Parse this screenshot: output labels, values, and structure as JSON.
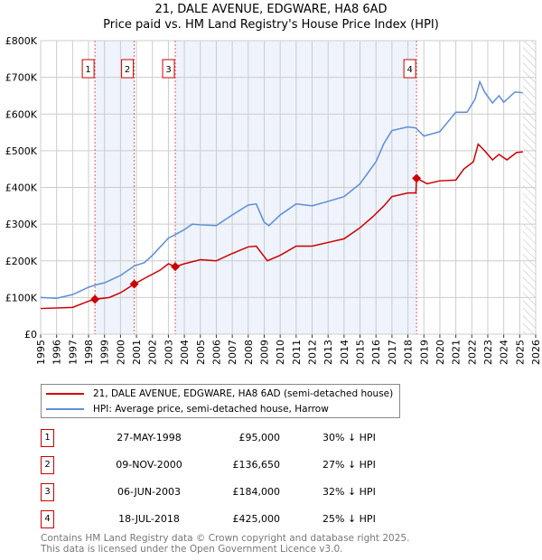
{
  "chart_data": {
    "type": "line",
    "title": "21, DALE AVENUE, EDGWARE, HA8 6AD",
    "subtitle": "Price paid vs. HM Land Registry's House Price Index (HPI)",
    "xlim": [
      1995,
      2026
    ],
    "ylim": [
      0,
      800000
    ],
    "x_ticks": [
      "1995",
      "1996",
      "1997",
      "1998",
      "1999",
      "2000",
      "2001",
      "2002",
      "2003",
      "2004",
      "2005",
      "2006",
      "2007",
      "2008",
      "2009",
      "2010",
      "2011",
      "2012",
      "2013",
      "2014",
      "2015",
      "2016",
      "2017",
      "2018",
      "2019",
      "2020",
      "2021",
      "2022",
      "2023",
      "2024",
      "2025",
      "2026"
    ],
    "y_ticks": [
      {
        "v": 0,
        "label": "£0"
      },
      {
        "v": 100000,
        "label": "£100K"
      },
      {
        "v": 200000,
        "label": "£200K"
      },
      {
        "v": 300000,
        "label": "£300K"
      },
      {
        "v": 400000,
        "label": "£400K"
      },
      {
        "v": 500000,
        "label": "£500K"
      },
      {
        "v": 600000,
        "label": "£600K"
      },
      {
        "v": 700000,
        "label": "£700K"
      },
      {
        "v": 800000,
        "label": "£800K"
      }
    ],
    "grid": true,
    "forecast_hatch_from": 2025.2,
    "series": [
      {
        "name": "21, DALE AVENUE, EDGWARE, HA8 6AD (semi-detached house)",
        "color": "#cc0000",
        "x": [
          1995,
          1997,
          1998,
          1998.4,
          1999.3,
          2000,
          2000.86,
          2001.5,
          2002.5,
          2003,
          2003.43,
          2004,
          2005,
          2006,
          2007,
          2008,
          2008.5,
          2009.2,
          2010,
          2011,
          2012,
          2013,
          2014,
          2015,
          2015.8,
          2016.5,
          2017,
          2018,
          2018.5,
          2018.54,
          2019.2,
          2020,
          2021,
          2021.5,
          2022.1,
          2022.4,
          2022.8,
          2023.3,
          2023.7,
          2024.2,
          2024.8,
          2025.2
        ],
        "y": [
          70000,
          73000,
          90000,
          95000,
          100000,
          113000,
          136650,
          152000,
          175000,
          192000,
          184000,
          192000,
          203000,
          200000,
          220000,
          238000,
          240000,
          200000,
          215000,
          240000,
          240000,
          250000,
          260000,
          290000,
          320000,
          350000,
          375000,
          385000,
          385000,
          425000,
          410000,
          418000,
          420000,
          450000,
          470000,
          518000,
          500000,
          475000,
          490000,
          475000,
          495000,
          497000
        ]
      },
      {
        "name": "HPI: Average price, semi-detached house, Harrow",
        "color": "#5b8ed6",
        "x": [
          1995,
          1996,
          1997,
          1998,
          1998.5,
          1999,
          2000,
          2000.9,
          2001.5,
          2002,
          2003,
          2003.5,
          2004,
          2004.5,
          2005,
          2006,
          2007,
          2008,
          2008.5,
          2009,
          2009.3,
          2010,
          2011,
          2012,
          2013,
          2014,
          2015,
          2016,
          2016.5,
          2017,
          2018,
          2018.5,
          2019,
          2020,
          2021,
          2021.7,
          2022.2,
          2022.5,
          2022.8,
          2023.3,
          2023.7,
          2024,
          2024.7,
          2025.2
        ],
        "y": [
          100000,
          98000,
          108000,
          128000,
          135000,
          140000,
          160000,
          187000,
          195000,
          215000,
          262000,
          273000,
          285000,
          300000,
          298000,
          296000,
          325000,
          352000,
          355000,
          305000,
          296000,
          325000,
          355000,
          350000,
          362000,
          375000,
          410000,
          470000,
          520000,
          555000,
          565000,
          562000,
          540000,
          552000,
          605000,
          605000,
          640000,
          688000,
          660000,
          630000,
          650000,
          632000,
          660000,
          658000
        ]
      }
    ],
    "sales": [
      {
        "n": "1",
        "x": 1998.4,
        "date": "27-MAY-1998",
        "price": "£95,000",
        "value": 95000,
        "hpi": "30% ↓ HPI"
      },
      {
        "n": "2",
        "x": 2000.86,
        "date": "09-NOV-2000",
        "price": "£136,650",
        "value": 136650,
        "hpi": "27% ↓ HPI"
      },
      {
        "n": "3",
        "x": 2003.43,
        "date": "06-JUN-2003",
        "price": "£184,000",
        "value": 184000,
        "hpi": "32% ↓ HPI"
      },
      {
        "n": "4",
        "x": 2018.54,
        "date": "18-JUL-2018",
        "price": "£425,000",
        "value": 425000,
        "hpi": "25% ↓ HPI"
      }
    ]
  },
  "footer": {
    "line1": "Contains HM Land Registry data © Crown copyright and database right 2025.",
    "line2": "This data is licensed under the Open Government Licence v3.0."
  }
}
